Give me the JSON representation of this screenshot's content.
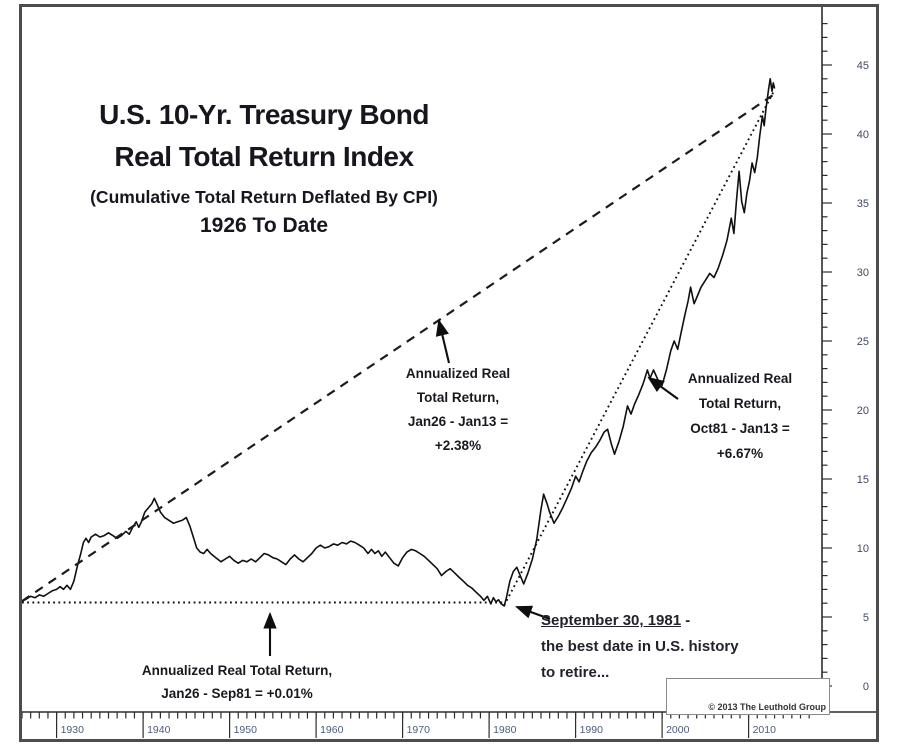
{
  "title": {
    "line1": "U.S. 10-Yr. Treasury Bond",
    "line2": "Real Total Return Index",
    "line3": "(Cumulative Total Return Deflated By CPI)",
    "line4": "1926 To Date"
  },
  "annotations": {
    "cagr_full": {
      "lines": [
        "Annualized Real",
        "Total Return,",
        "Jan26 - Jan13 =",
        "+2.38%"
      ]
    },
    "cagr_post81": {
      "lines": [
        "Annualized Real",
        "Total Return,",
        "Oct81 - Jan13 =",
        "+6.67%"
      ]
    },
    "cagr_pre81": {
      "lines": [
        "Annualized Real Total Return,",
        "Jan26 - Sep81 = +0.01%"
      ]
    },
    "retire": {
      "underlined": "September 30, 1981",
      "line1_suffix": " -",
      "line2": "the best date in U.S. history",
      "line3": "to retire..."
    }
  },
  "copyright": "© 2013 The Leuthold Group",
  "chart_data": {
    "type": "line",
    "title": "U.S. 10-Yr. Treasury Bond Real Total Return Index (Cumulative Total Return Deflated By CPI), 1926 To Date",
    "grid": false,
    "legend": "none",
    "x_axis": {
      "range": [
        1926,
        2017
      ],
      "minor_tick_step_years": 1,
      "decade_labels": [
        1930,
        1940,
        1950,
        1960,
        1970,
        1980,
        1990,
        2000,
        2010
      ]
    },
    "y_axis": {
      "side": "right",
      "range": [
        0,
        45
      ],
      "major_tick_step": 5,
      "minor_tick_step": 1,
      "ticks": [
        0,
        5,
        10,
        15,
        20,
        25,
        30,
        35,
        40,
        45
      ]
    },
    "series": [
      {
        "name": "Real Total Return Index",
        "style": "solid",
        "points": [
          [
            1926,
            6.15
          ],
          [
            1926.5,
            6.3
          ],
          [
            1927,
            6.5
          ],
          [
            1927.5,
            6.4
          ],
          [
            1928,
            6.6
          ],
          [
            1928.5,
            6.5
          ],
          [
            1929,
            6.7
          ],
          [
            1929.5,
            6.9
          ],
          [
            1930,
            7.0
          ],
          [
            1930.4,
            7.2
          ],
          [
            1930.8,
            7.0
          ],
          [
            1931.2,
            7.3
          ],
          [
            1931.6,
            7.0
          ],
          [
            1932,
            7.6
          ],
          [
            1932.4,
            8.7
          ],
          [
            1932.8,
            9.6
          ],
          [
            1933.1,
            10.4
          ],
          [
            1933.4,
            10.7
          ],
          [
            1933.7,
            10.4
          ],
          [
            1934,
            10.8
          ],
          [
            1934.5,
            11.0
          ],
          [
            1935,
            10.8
          ],
          [
            1935.5,
            10.9
          ],
          [
            1936,
            11.1
          ],
          [
            1936.5,
            10.9
          ],
          [
            1937,
            10.7
          ],
          [
            1937.5,
            10.9
          ],
          [
            1938,
            11.2
          ],
          [
            1938.4,
            11.0
          ],
          [
            1938.8,
            11.5
          ],
          [
            1939.2,
            11.9
          ],
          [
            1939.5,
            11.5
          ],
          [
            1939.8,
            11.9
          ],
          [
            1940.2,
            12.6
          ],
          [
            1940.6,
            12.9
          ],
          [
            1941,
            13.2
          ],
          [
            1941.3,
            13.6
          ],
          [
            1941.6,
            13.2
          ],
          [
            1942,
            12.6
          ],
          [
            1942.5,
            12.2
          ],
          [
            1943,
            12.0
          ],
          [
            1943.5,
            11.8
          ],
          [
            1944,
            11.9
          ],
          [
            1944.5,
            12.0
          ],
          [
            1945,
            12.2
          ],
          [
            1945.4,
            11.6
          ],
          [
            1945.8,
            10.8
          ],
          [
            1946.2,
            10.0
          ],
          [
            1946.6,
            9.7
          ],
          [
            1947,
            9.6
          ],
          [
            1947.4,
            9.9
          ],
          [
            1947.8,
            9.6
          ],
          [
            1948.4,
            9.3
          ],
          [
            1949,
            9.0
          ],
          [
            1949.5,
            9.2
          ],
          [
            1950,
            9.4
          ],
          [
            1950.5,
            9.1
          ],
          [
            1951,
            8.9
          ],
          [
            1951.5,
            9.1
          ],
          [
            1952,
            9.0
          ],
          [
            1952.5,
            9.2
          ],
          [
            1953,
            9.0
          ],
          [
            1953.5,
            9.3
          ],
          [
            1954,
            9.6
          ],
          [
            1954.5,
            9.5
          ],
          [
            1955,
            9.3
          ],
          [
            1955.5,
            9.2
          ],
          [
            1956,
            9.0
          ],
          [
            1956.5,
            8.8
          ],
          [
            1957,
            9.2
          ],
          [
            1957.5,
            9.5
          ],
          [
            1958,
            9.2
          ],
          [
            1958.5,
            9.0
          ],
          [
            1959,
            9.3
          ],
          [
            1959.5,
            9.6
          ],
          [
            1960,
            10.0
          ],
          [
            1960.5,
            10.2
          ],
          [
            1961,
            10.0
          ],
          [
            1961.5,
            10.1
          ],
          [
            1962,
            10.3
          ],
          [
            1962.5,
            10.2
          ],
          [
            1963,
            10.4
          ],
          [
            1963.5,
            10.3
          ],
          [
            1964,
            10.5
          ],
          [
            1964.5,
            10.4
          ],
          [
            1965,
            10.2
          ],
          [
            1965.5,
            10.0
          ],
          [
            1966,
            9.6
          ],
          [
            1966.4,
            9.9
          ],
          [
            1966.8,
            9.6
          ],
          [
            1967.2,
            9.8
          ],
          [
            1967.6,
            9.4
          ],
          [
            1968,
            9.7
          ],
          [
            1968.5,
            9.3
          ],
          [
            1969,
            8.9
          ],
          [
            1969.5,
            8.7
          ],
          [
            1970,
            9.3
          ],
          [
            1970.5,
            9.7
          ],
          [
            1971,
            9.9
          ],
          [
            1971.5,
            9.8
          ],
          [
            1972,
            9.6
          ],
          [
            1972.5,
            9.4
          ],
          [
            1973,
            9.1
          ],
          [
            1973.5,
            8.8
          ],
          [
            1974,
            8.5
          ],
          [
            1974.5,
            8.0
          ],
          [
            1975,
            8.3
          ],
          [
            1975.5,
            8.5
          ],
          [
            1976,
            8.2
          ],
          [
            1976.5,
            7.9
          ],
          [
            1977,
            7.6
          ],
          [
            1977.5,
            7.3
          ],
          [
            1978,
            7.1
          ],
          [
            1978.5,
            6.8
          ],
          [
            1979,
            6.5
          ],
          [
            1979.4,
            6.2
          ],
          [
            1979.8,
            6.5
          ],
          [
            1980.2,
            5.95
          ],
          [
            1980.5,
            6.4
          ],
          [
            1980.8,
            6.1
          ],
          [
            1981.1,
            6.25
          ],
          [
            1981.4,
            5.95
          ],
          [
            1981.75,
            5.8
          ],
          [
            1982,
            6.4
          ],
          [
            1982.4,
            7.6
          ],
          [
            1982.8,
            8.3
          ],
          [
            1983.2,
            8.6
          ],
          [
            1983.6,
            8.0
          ],
          [
            1984,
            7.4
          ],
          [
            1984.5,
            8.2
          ],
          [
            1985,
            9.2
          ],
          [
            1985.5,
            10.6
          ],
          [
            1986,
            12.8
          ],
          [
            1986.3,
            13.9
          ],
          [
            1986.7,
            13.2
          ],
          [
            1987,
            12.6
          ],
          [
            1987.5,
            11.8
          ],
          [
            1988,
            12.3
          ],
          [
            1988.5,
            12.9
          ],
          [
            1989,
            13.6
          ],
          [
            1989.5,
            14.3
          ],
          [
            1990,
            15.2
          ],
          [
            1990.4,
            14.8
          ],
          [
            1990.8,
            15.5
          ],
          [
            1991.3,
            16.3
          ],
          [
            1991.8,
            16.9
          ],
          [
            1992.3,
            17.3
          ],
          [
            1992.8,
            17.8
          ],
          [
            1993.3,
            18.4
          ],
          [
            1993.7,
            18.6
          ],
          [
            1994.1,
            17.6
          ],
          [
            1994.5,
            16.8
          ],
          [
            1995,
            17.7
          ],
          [
            1995.5,
            18.8
          ],
          [
            1996,
            20.3
          ],
          [
            1996.4,
            19.7
          ],
          [
            1996.8,
            20.4
          ],
          [
            1997.3,
            21.1
          ],
          [
            1997.8,
            21.9
          ],
          [
            1998.3,
            22.9
          ],
          [
            1998.6,
            22.3
          ],
          [
            1999,
            22.9
          ],
          [
            1999.5,
            22.2
          ],
          [
            2000,
            21.8
          ],
          [
            2000.5,
            22.9
          ],
          [
            2001,
            24.3
          ],
          [
            2001.4,
            25.0
          ],
          [
            2001.8,
            24.4
          ],
          [
            2002.2,
            25.6
          ],
          [
            2002.6,
            26.8
          ],
          [
            2003,
            27.9
          ],
          [
            2003.3,
            28.9
          ],
          [
            2003.7,
            27.7
          ],
          [
            2004.1,
            28.3
          ],
          [
            2004.5,
            28.9
          ],
          [
            2005,
            29.4
          ],
          [
            2005.5,
            29.9
          ],
          [
            2006,
            29.6
          ],
          [
            2006.5,
            30.3
          ],
          [
            2007,
            31.2
          ],
          [
            2007.5,
            32.3
          ],
          [
            2008,
            33.9
          ],
          [
            2008.3,
            32.8
          ],
          [
            2008.6,
            35.2
          ],
          [
            2008.9,
            37.3
          ],
          [
            2009.2,
            35.1
          ],
          [
            2009.5,
            34.3
          ],
          [
            2009.8,
            35.7
          ],
          [
            2010.1,
            36.6
          ],
          [
            2010.4,
            37.9
          ],
          [
            2010.7,
            37.2
          ],
          [
            2011,
            38.3
          ],
          [
            2011.3,
            39.9
          ],
          [
            2011.6,
            41.3
          ],
          [
            2011.8,
            40.6
          ],
          [
            2012,
            41.8
          ],
          [
            2012.3,
            43.2
          ],
          [
            2012.5,
            44.0
          ],
          [
            2012.7,
            43.1
          ],
          [
            2012.85,
            43.7
          ],
          [
            2013,
            43.3
          ]
        ]
      },
      {
        "name": "Trend line Jan26 - Jan13, +2.38% annualized",
        "style": "dashed",
        "points": [
          [
            1926,
            6.15
          ],
          [
            2013,
            42.9
          ]
        ]
      },
      {
        "name": "Flat trend line Jan26 - Sep81, +0.01% annualized",
        "style": "dotted",
        "points": [
          [
            1926,
            6.05
          ],
          [
            1981.75,
            6.05
          ]
        ]
      },
      {
        "name": "Trend line Oct81 - Jan13, +6.67% annualized",
        "style": "dotted",
        "points": [
          [
            1981.75,
            5.85
          ],
          [
            2013,
            43.2
          ]
        ]
      }
    ]
  }
}
